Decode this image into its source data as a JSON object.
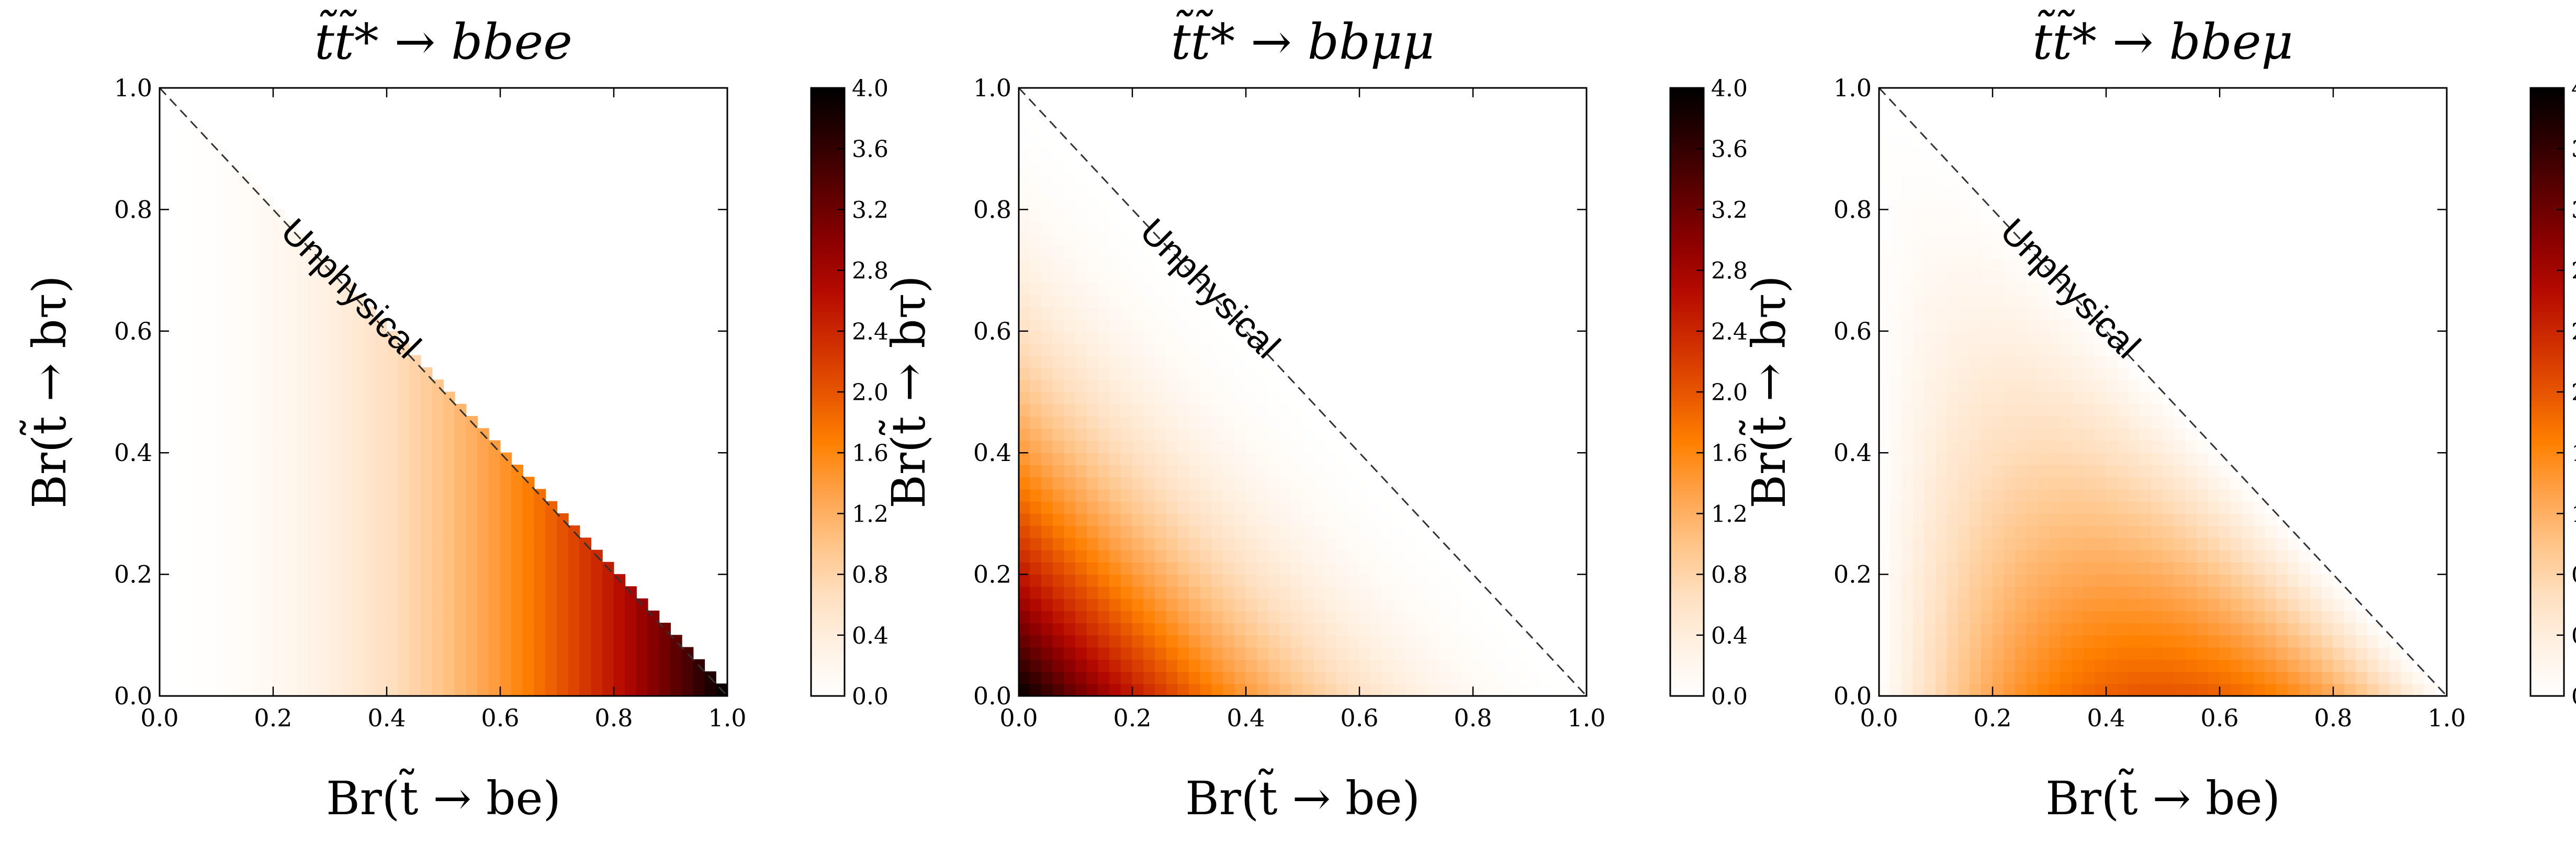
{
  "figure": {
    "colormap_name": "gist_heat_r",
    "colormap": [
      "#ffffff",
      "#fff1e3",
      "#ffdfbf",
      "#ffc487",
      "#ffa24a",
      "#ff8000",
      "#e65400",
      "#cf2d00",
      "#b40a00",
      "#8a0000",
      "#5a0000",
      "#2a0000",
      "#000000"
    ],
    "colorbar_ticks": [
      "0.0",
      "0.4",
      "0.8",
      "1.2",
      "1.6",
      "2.0",
      "2.4",
      "2.8",
      "3.2",
      "3.6",
      "4.0"
    ],
    "colorbar_range": [
      0.0,
      4.0
    ],
    "x_ticks": [
      "0.0",
      "0.2",
      "0.4",
      "0.6",
      "0.8",
      "1.0"
    ],
    "y_ticks": [
      "0.0",
      "0.2",
      "0.4",
      "0.6",
      "0.8",
      "1.0"
    ],
    "boundary_style": "dashed",
    "boundary_color": "#333333"
  },
  "chart_data": [
    {
      "type": "heatmap",
      "title": "t̃t̃* → bbee",
      "xlabel": "Br(t̃ → be)",
      "ylabel": "Br(t̃ → bτ)",
      "xlim": [
        0.0,
        1.0
      ],
      "ylim": [
        0.0,
        1.0
      ],
      "region": "Br(be) + Br(bτ) ≤ 1",
      "annotation": "Unphysical",
      "grid": false,
      "model": "4 · x²",
      "sample_points": [
        {
          "x": 0.0,
          "y": 0.0,
          "value": 0.0
        },
        {
          "x": 0.2,
          "y": 0.2,
          "value": 0.16
        },
        {
          "x": 0.4,
          "y": 0.2,
          "value": 0.64
        },
        {
          "x": 0.5,
          "y": 0.0,
          "value": 1.0
        },
        {
          "x": 0.6,
          "y": 0.2,
          "value": 1.44
        },
        {
          "x": 0.8,
          "y": 0.1,
          "value": 2.56
        },
        {
          "x": 0.9,
          "y": 0.0,
          "value": 3.24
        },
        {
          "x": 1.0,
          "y": 0.0,
          "value": 4.0
        }
      ]
    },
    {
      "type": "heatmap",
      "title": "t̃t̃* → bbμμ",
      "xlabel": "Br(t̃ → be)",
      "ylabel": "Br(t̃ → bτ)",
      "xlim": [
        0.0,
        1.0
      ],
      "ylim": [
        0.0,
        1.0
      ],
      "region": "Br(be) + Br(bτ) ≤ 1",
      "annotation": "Unphysical",
      "grid": false,
      "model": "4 · (1 − x − y)²",
      "sample_points": [
        {
          "x": 0.0,
          "y": 0.0,
          "value": 4.0
        },
        {
          "x": 0.1,
          "y": 0.1,
          "value": 2.56
        },
        {
          "x": 0.2,
          "y": 0.2,
          "value": 1.44
        },
        {
          "x": 0.0,
          "y": 0.5,
          "value": 1.0
        },
        {
          "x": 0.4,
          "y": 0.2,
          "value": 0.64
        },
        {
          "x": 0.6,
          "y": 0.2,
          "value": 0.16
        },
        {
          "x": 0.9,
          "y": 0.0,
          "value": 0.04
        },
        {
          "x": 1.0,
          "y": 0.0,
          "value": 0.0
        }
      ]
    },
    {
      "type": "heatmap",
      "title": "t̃t̃* → bbeμ",
      "xlabel": "Br(t̃ → be)",
      "ylabel": "Br(t̃ → bτ)",
      "xlim": [
        0.0,
        1.0
      ],
      "ylim": [
        0.0,
        1.0
      ],
      "region": "Br(be) + Br(bτ) ≤ 1",
      "annotation": "Unphysical",
      "grid": false,
      "model": "8 · x · (1 − x − y)",
      "sample_points": [
        {
          "x": 0.0,
          "y": 0.0,
          "value": 0.0
        },
        {
          "x": 0.2,
          "y": 0.2,
          "value": 0.96
        },
        {
          "x": 0.4,
          "y": 0.2,
          "value": 1.28
        },
        {
          "x": 0.5,
          "y": 0.0,
          "value": 2.0
        },
        {
          "x": 0.6,
          "y": 0.2,
          "value": 0.96
        },
        {
          "x": 0.8,
          "y": 0.1,
          "value": 0.64
        },
        {
          "x": 1.0,
          "y": 0.0,
          "value": 0.0
        }
      ]
    }
  ]
}
